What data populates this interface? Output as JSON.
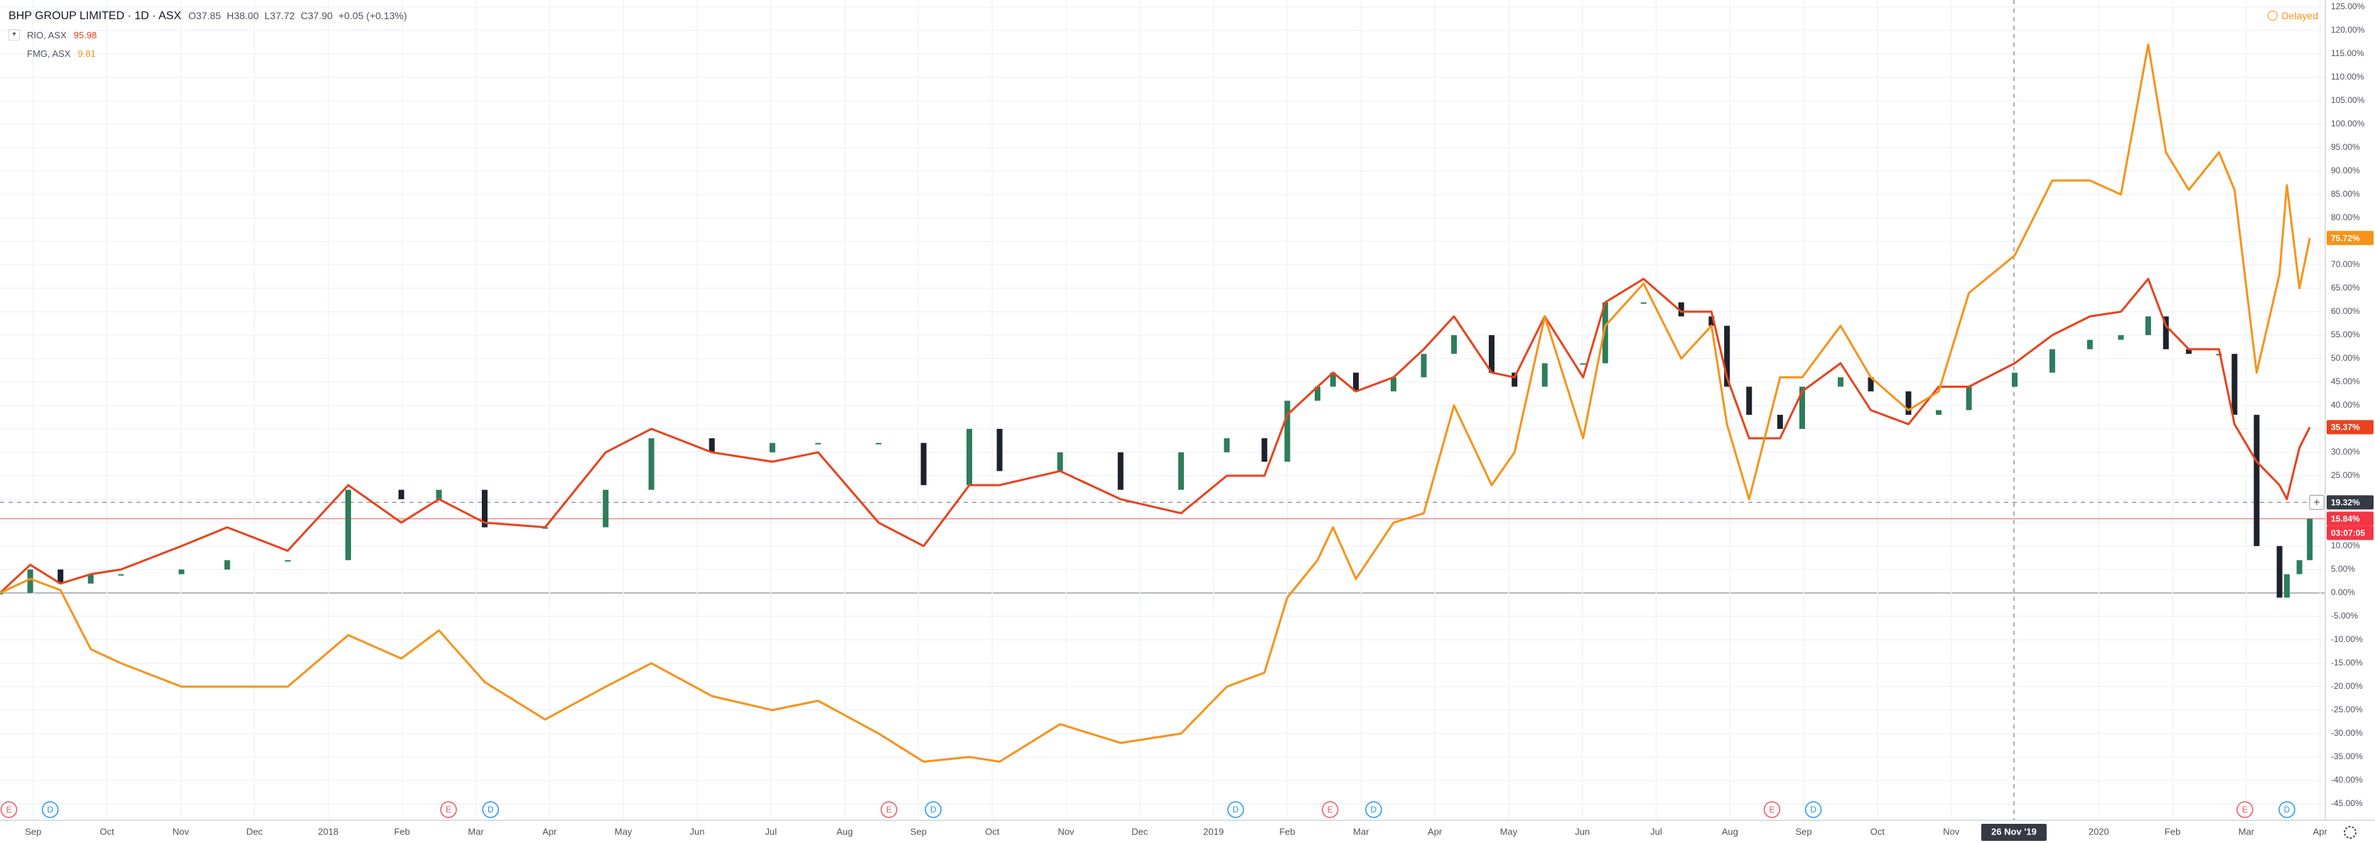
{
  "chart_data": {
    "type": "candlestick",
    "title": "BHP GROUP LIMITED · 1D · ASX",
    "header_values": [
      "O37.85",
      "H38.00",
      "L37.72",
      "C37.90",
      "+0.05 (+0.13%)"
    ],
    "status": "Delayed",
    "x": [
      -0.45,
      -0.04,
      0.37,
      0.78,
      1.19,
      2.01,
      2.63,
      3.45,
      4.27,
      4.99,
      5.5,
      6.12,
      6.94,
      7.76,
      8.38,
      9.2,
      10.02,
      10.64,
      11.46,
      12.07,
      12.69,
      13.1,
      13.92,
      14.74,
      15.56,
      16.18,
      16.69,
      17.0,
      17.41,
      17.62,
      17.93,
      18.44,
      18.85,
      19.26,
      19.77,
      20.08,
      20.49,
      21.01,
      21.31,
      21.83,
      22.34,
      22.75,
      22.96,
      23.26,
      23.68,
      23.98,
      24.5,
      24.91,
      25.42,
      25.83,
      26.24,
      26.86,
      27.37,
      27.88,
      28.3,
      28.67,
      28.91,
      29.22,
      29.63,
      29.84,
      30.14,
      30.45,
      30.55,
      30.72,
      30.86
    ],
    "open": [
      0,
      0,
      5,
      2,
      4,
      4,
      5,
      7,
      7,
      22,
      20,
      22,
      14,
      14,
      22,
      33,
      30,
      32,
      32,
      32,
      23,
      35,
      26,
      30,
      22,
      30,
      33,
      28,
      41,
      44,
      47,
      43,
      46,
      51,
      55,
      47,
      44,
      49,
      49,
      62,
      62,
      59,
      57,
      44,
      38,
      35,
      44,
      46,
      43,
      38,
      39,
      44,
      47,
      52,
      54,
      55,
      59,
      52,
      51,
      51,
      38,
      10,
      -1,
      4,
      7
    ],
    "close": [
      0,
      5,
      2,
      4,
      4,
      5,
      7,
      7,
      22,
      20,
      22,
      14,
      14,
      22,
      33,
      30,
      32,
      32,
      32,
      23,
      35,
      26,
      30,
      22,
      30,
      33,
      28,
      41,
      44,
      47,
      43,
      46,
      51,
      55,
      47,
      44,
      49,
      49,
      62,
      62,
      59,
      57,
      44,
      38,
      35,
      44,
      46,
      43,
      38,
      39,
      44,
      47,
      52,
      54,
      55,
      59,
      52,
      51,
      51,
      38,
      10,
      -1,
      4,
      7,
      15.84
    ],
    "up_color": "#2e7d5b",
    "down_color": "#1e222d",
    "last_label": "15.84%",
    "last_color": "#f23645",
    "countdown": "03:07:05",
    "series": [
      {
        "name": "RIO, ASX",
        "type": "line",
        "color": "#e8431e",
        "legend_value": "95.98",
        "last_label": "35.37%",
        "values": [
          0,
          6,
          2,
          4,
          5,
          10,
          14,
          9,
          23,
          15,
          20,
          15,
          14,
          30,
          35,
          30,
          28,
          30,
          15,
          10,
          23,
          23,
          26,
          20,
          17,
          25,
          25,
          38,
          44,
          47,
          43,
          46,
          52,
          59,
          47,
          46,
          59,
          46,
          62,
          67,
          60,
          60,
          46,
          33,
          33,
          43,
          49,
          39,
          36,
          44,
          44,
          49,
          55,
          59,
          60,
          67,
          57,
          52,
          52,
          36,
          28,
          23,
          20,
          31,
          35.37
        ]
      },
      {
        "name": "FMG, ASX",
        "type": "line",
        "color": "#f7931a",
        "legend_value": "9.81",
        "last_label": "75.72%",
        "values": [
          0,
          3,
          0.6,
          -12,
          -15,
          -20,
          -20,
          -20,
          -9,
          -14,
          -8,
          -19,
          -27,
          -20,
          -15,
          -22,
          -25,
          -23,
          -30,
          -36,
          -35,
          -36,
          -28,
          -32,
          -30,
          -20,
          -17,
          -1,
          7,
          14,
          3,
          15,
          17,
          40,
          23,
          30,
          59,
          33,
          57,
          66,
          50,
          57,
          36,
          20,
          46,
          46,
          57,
          46,
          39,
          43,
          64,
          72,
          88,
          88,
          85,
          117,
          94,
          86,
          94,
          86,
          47,
          68,
          87,
          65,
          75.72
        ]
      }
    ],
    "xlim": [
      -0.45,
      31.07
    ],
    "xticks": [
      {
        "value": 0,
        "label": "Sep"
      },
      {
        "value": 1,
        "label": "Oct"
      },
      {
        "value": 2,
        "label": "Nov"
      },
      {
        "value": 3,
        "label": "Dec"
      },
      {
        "value": 4,
        "label": "2018"
      },
      {
        "value": 5,
        "label": "Feb"
      },
      {
        "value": 6,
        "label": "Mar"
      },
      {
        "value": 7,
        "label": "Apr"
      },
      {
        "value": 8,
        "label": "May"
      },
      {
        "value": 9,
        "label": "Jun"
      },
      {
        "value": 10,
        "label": "Jul"
      },
      {
        "value": 11,
        "label": "Aug"
      },
      {
        "value": 12,
        "label": "Sep"
      },
      {
        "value": 13,
        "label": "Oct"
      },
      {
        "value": 14,
        "label": "Nov"
      },
      {
        "value": 15,
        "label": "Dec"
      },
      {
        "value": 16,
        "label": "2019"
      },
      {
        "value": 17,
        "label": "Feb"
      },
      {
        "value": 18,
        "label": "Mar"
      },
      {
        "value": 19,
        "label": "Apr"
      },
      {
        "value": 20,
        "label": "May"
      },
      {
        "value": 21,
        "label": "Jun"
      },
      {
        "value": 22,
        "label": "Jul"
      },
      {
        "value": 23,
        "label": "Aug"
      },
      {
        "value": 24,
        "label": "Sep"
      },
      {
        "value": 25,
        "label": "Oct"
      },
      {
        "value": 26,
        "label": "Nov"
      },
      {
        "value": 28,
        "label": "2020"
      },
      {
        "value": 29,
        "label": "Feb"
      },
      {
        "value": 30,
        "label": "Mar"
      },
      {
        "value": 31,
        "label": "Apr"
      }
    ],
    "ylim": [
      -48.5,
      126.5
    ],
    "yticks": [
      {
        "value": -45,
        "label": "-45.00%"
      },
      {
        "value": -40,
        "label": "-40.00%"
      },
      {
        "value": -35,
        "label": "-35.00%"
      },
      {
        "value": -30,
        "label": "-30.00%"
      },
      {
        "value": -25,
        "label": "-25.00%"
      },
      {
        "value": -20,
        "label": "-20.00%"
      },
      {
        "value": -15,
        "label": "-15.00%"
      },
      {
        "value": -10,
        "label": "-10.00%"
      },
      {
        "value": -5,
        "label": "-5.00%"
      },
      {
        "value": 0,
        "label": "0.00%"
      },
      {
        "value": 5,
        "label": "5.00%"
      },
      {
        "value": 10,
        "label": "10.00%"
      },
      {
        "value": 15,
        "label": "15.00%"
      },
      {
        "value": 20,
        "label": "20.00%"
      },
      {
        "value": 25,
        "label": "25.00%"
      },
      {
        "value": 30,
        "label": "30.00%"
      },
      {
        "value": 35,
        "label": "35.00%"
      },
      {
        "value": 40,
        "label": "40.00%"
      },
      {
        "value": 45,
        "label": "45.00%"
      },
      {
        "value": 50,
        "label": "50.00%"
      },
      {
        "value": 55,
        "label": "55.00%"
      },
      {
        "value": 60,
        "label": "60.00%"
      },
      {
        "value": 65,
        "label": "65.00%"
      },
      {
        "value": 70,
        "label": "70.00%"
      },
      {
        "value": 75,
        "label": "75.00%"
      },
      {
        "value": 80,
        "label": "80.00%"
      },
      {
        "value": 85,
        "label": "85.00%"
      },
      {
        "value": 90,
        "label": "90.00%"
      },
      {
        "value": 95,
        "label": "95.00%"
      },
      {
        "value": 100,
        "label": "100.00%"
      },
      {
        "value": 105,
        "label": "105.00%"
      },
      {
        "value": 110,
        "label": "110.00%"
      },
      {
        "value": 115,
        "label": "115.00%"
      },
      {
        "value": 120,
        "label": "120.00%"
      },
      {
        "value": 125,
        "label": "125.00%"
      }
    ],
    "grid": true,
    "crosshair": {
      "x": 26.85,
      "x_label": "26 Nov '19",
      "y": 19.32,
      "y_label": "19.32%"
    },
    "event_colors": {
      "E": "#f7525f",
      "D": "#2196f3"
    },
    "events": [
      {
        "label": "E",
        "x": -0.33
      },
      {
        "label": "D",
        "x": 0.23
      },
      {
        "label": "E",
        "x": 5.63
      },
      {
        "label": "D",
        "x": 6.2
      },
      {
        "label": "E",
        "x": 11.6
      },
      {
        "label": "D",
        "x": 12.2
      },
      {
        "label": "D",
        "x": 16.3
      },
      {
        "label": "E",
        "x": 17.58
      },
      {
        "label": "D",
        "x": 18.17
      },
      {
        "label": "E",
        "x": 23.57
      },
      {
        "label": "D",
        "x": 24.13
      },
      {
        "label": "E",
        "x": 29.98
      },
      {
        "label": "D",
        "x": 30.55
      }
    ]
  }
}
